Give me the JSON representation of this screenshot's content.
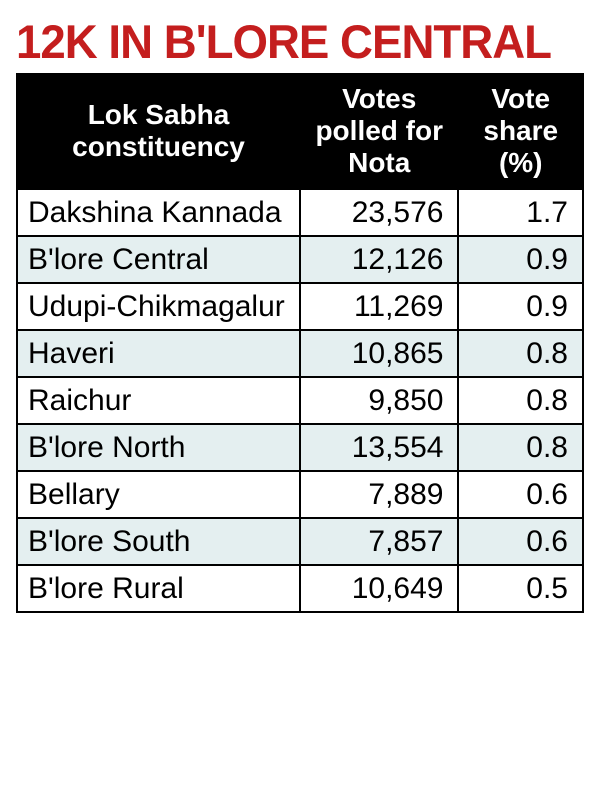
{
  "headline": "12K IN B'LORE CENTRAL",
  "table": {
    "type": "table",
    "background_color": "#ffffff",
    "header_bg": "#000000",
    "header_fg": "#ffffff",
    "row_alt_bg": "#e4eff0",
    "border_color": "#000000",
    "headline_color": "#c41e1e",
    "headline_fontsize": 47,
    "header_fontsize": 28,
    "cell_fontsize": 30,
    "columns": [
      {
        "label": "Lok Sabha constituency",
        "align": "left",
        "width_pct": 50
      },
      {
        "label": "Votes polled for Nota",
        "align": "right",
        "width_pct": 28
      },
      {
        "label": "Vote share (%)",
        "align": "right",
        "width_pct": 22
      }
    ],
    "rows": [
      {
        "constituency": "Dakshina Kannada",
        "votes": "23,576",
        "share": "1.7"
      },
      {
        "constituency": "B'lore Central",
        "votes": "12,126",
        "share": "0.9"
      },
      {
        "constituency": "Udupi-Chikmagalur",
        "votes": "11,269",
        "share": "0.9"
      },
      {
        "constituency": "Haveri",
        "votes": "10,865",
        "share": "0.8"
      },
      {
        "constituency": "Raichur",
        "votes": "9,850",
        "share": "0.8"
      },
      {
        "constituency": "B'lore North",
        "votes": "13,554",
        "share": "0.8"
      },
      {
        "constituency": "Bellary",
        "votes": "7,889",
        "share": "0.6"
      },
      {
        "constituency": "B'lore South",
        "votes": "7,857",
        "share": "0.6"
      },
      {
        "constituency": "B'lore Rural",
        "votes": "10,649",
        "share": "0.5"
      }
    ]
  }
}
